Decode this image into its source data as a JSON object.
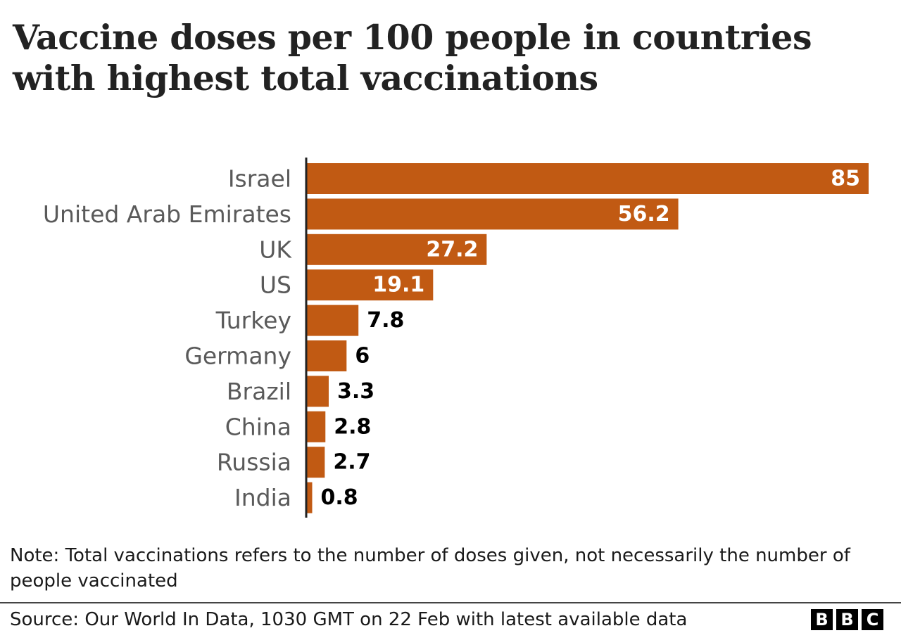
{
  "title": "Vaccine doses per 100 people in countries with highest total vaccinations",
  "note": "Note: Total vaccinations refers to the number of doses given, not necessarily the number of people vaccinated",
  "source": "Source: Our World In Data, 1030 GMT on 22 Feb with latest available data",
  "logo": [
    "B",
    "B",
    "C"
  ],
  "colors": {
    "bar": "#c15a13",
    "label_inside": "#ffffff",
    "label_outside": "#000000",
    "category": "#5a5a5a",
    "axis": "#222222"
  },
  "chart_data": {
    "type": "bar",
    "orientation": "horizontal",
    "title": "Vaccine doses per 100 people in countries with highest total vaccinations",
    "categories": [
      "Israel",
      "United Arab Emirates",
      "UK",
      "US",
      "Turkey",
      "Germany",
      "Brazil",
      "China",
      "Russia",
      "India"
    ],
    "values": [
      85,
      56.2,
      27.2,
      19.1,
      7.8,
      6,
      3.3,
      2.8,
      2.7,
      0.8
    ],
    "value_labels": [
      "85",
      "56.2",
      "27.2",
      "19.1",
      "7.8",
      "6",
      "3.3",
      "2.8",
      "2.7",
      "0.8"
    ],
    "xlim": [
      0,
      85
    ],
    "grid": false,
    "legend": "none"
  }
}
